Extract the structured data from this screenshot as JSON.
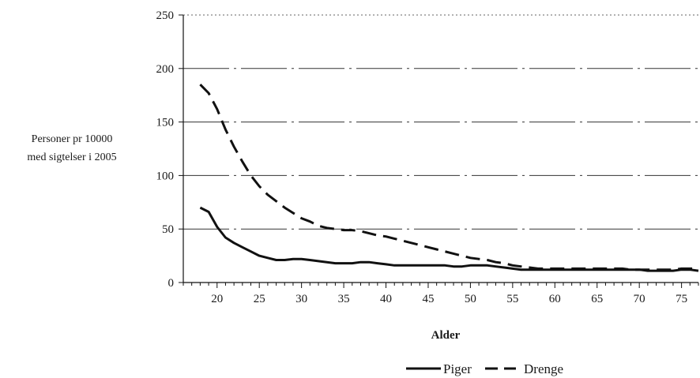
{
  "chart_data": {
    "type": "line",
    "ylabel": [
      "Personer pr 10000",
      "med sigtelser i 2005"
    ],
    "xlabel": "Alder",
    "ylim": [
      0,
      250
    ],
    "yticks": [
      0,
      50,
      100,
      150,
      200,
      250
    ],
    "xlim": [
      16,
      77
    ],
    "xticks": [
      20,
      25,
      30,
      35,
      40,
      45,
      50,
      55,
      60,
      65,
      70,
      75
    ],
    "grid": "horizontal",
    "legend_position": "bottom-right",
    "series": [
      {
        "name": "Piger",
        "style": "solid",
        "color": "#111111",
        "x": [
          18,
          19,
          20,
          21,
          22,
          23,
          24,
          25,
          26,
          27,
          28,
          29,
          30,
          31,
          32,
          33,
          34,
          35,
          36,
          37,
          38,
          39,
          40,
          41,
          42,
          43,
          44,
          45,
          46,
          47,
          48,
          49,
          50,
          51,
          52,
          53,
          54,
          55,
          56,
          57,
          58,
          59,
          60,
          61,
          62,
          63,
          64,
          65,
          66,
          67,
          68,
          69,
          70,
          71,
          72,
          73,
          74,
          75,
          76,
          77
        ],
        "y": [
          70,
          66,
          52,
          42,
          37,
          33,
          29,
          25,
          23,
          21,
          21,
          22,
          22,
          21,
          20,
          19,
          18,
          18,
          18,
          19,
          19,
          18,
          17,
          16,
          16,
          16,
          16,
          16,
          16,
          16,
          15,
          15,
          16,
          16,
          16,
          15,
          14,
          13,
          12,
          12,
          12,
          12,
          12,
          12,
          12,
          12,
          12,
          12,
          12,
          12,
          12,
          12,
          12,
          11,
          11,
          11,
          11,
          12,
          12,
          11
        ]
      },
      {
        "name": "Drenge",
        "style": "dashed",
        "color": "#111111",
        "x": [
          18,
          19,
          20,
          21,
          22,
          23,
          24,
          25,
          26,
          27,
          28,
          29,
          30,
          31,
          32,
          33,
          34,
          35,
          36,
          37,
          38,
          39,
          40,
          41,
          42,
          43,
          44,
          45,
          46,
          47,
          48,
          49,
          50,
          51,
          52,
          53,
          54,
          55,
          56,
          57,
          58,
          59,
          60,
          61,
          62,
          63,
          64,
          65,
          66,
          67,
          68,
          69,
          70,
          71,
          72,
          73,
          74,
          75,
          76,
          77
        ],
        "y": [
          185,
          177,
          162,
          143,
          127,
          113,
          100,
          90,
          82,
          76,
          70,
          65,
          60,
          57,
          53,
          51,
          50,
          49,
          49,
          48,
          46,
          44,
          43,
          41,
          39,
          37,
          35,
          33,
          31,
          29,
          27,
          25,
          23,
          22,
          21,
          19,
          18,
          16,
          15,
          14,
          13,
          13,
          13,
          13,
          13,
          13,
          13,
          13,
          13,
          13,
          13,
          12,
          12,
          12,
          12,
          12,
          12,
          13,
          13,
          13
        ]
      }
    ]
  }
}
